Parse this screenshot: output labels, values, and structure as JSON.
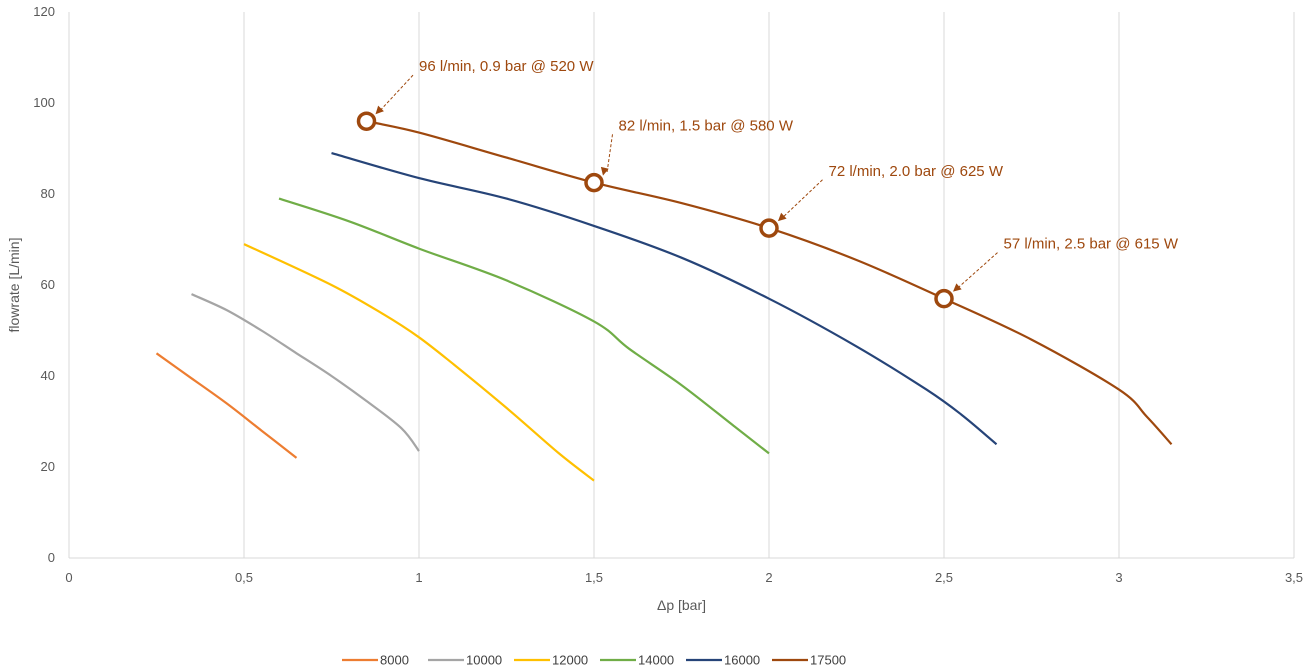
{
  "chart_data": {
    "type": "line",
    "title": "",
    "xlabel": "Δp [bar]",
    "ylabel": "flowrate [L/min]",
    "xlim": [
      0,
      3.5
    ],
    "ylim": [
      0,
      120
    ],
    "xticks": [
      0,
      0.5,
      1,
      1.5,
      2,
      2.5,
      3,
      3.5
    ],
    "xtick_labels": [
      "0",
      "0,5",
      "1",
      "1,5",
      "2",
      "2,5",
      "3",
      "3,5"
    ],
    "yticks": [
      0,
      20,
      40,
      60,
      80,
      100,
      120
    ],
    "ytick_labels": [
      "0",
      "20",
      "40",
      "60",
      "80",
      "100",
      "120"
    ],
    "grid": "vertical",
    "legend_position": "bottom",
    "series": [
      {
        "name": "8000",
        "color": "#ED7D31",
        "x": [
          0.25,
          0.35,
          0.45,
          0.55,
          0.65
        ],
        "y": [
          45,
          39.5,
          34,
          28,
          22
        ]
      },
      {
        "name": "10000",
        "color": "#A5A5A5",
        "x": [
          0.35,
          0.45,
          0.55,
          0.65,
          0.75,
          0.85,
          0.95,
          1.0
        ],
        "y": [
          58,
          54.5,
          50,
          45,
          40,
          34.5,
          28.5,
          23.5
        ]
      },
      {
        "name": "12000",
        "color": "#FFC000",
        "x": [
          0.5,
          0.75,
          0.9,
          1.0,
          1.1,
          1.25,
          1.4,
          1.5
        ],
        "y": [
          69,
          60,
          53.5,
          48.5,
          42.5,
          33,
          23,
          17
        ]
      },
      {
        "name": "14000",
        "color": "#70AD47",
        "x": [
          0.6,
          0.8,
          1.0,
          1.25,
          1.5,
          1.6,
          1.75,
          1.9,
          2.0
        ],
        "y": [
          79,
          74,
          68,
          61,
          52,
          46,
          38,
          29,
          23
        ]
      },
      {
        "name": "16000",
        "color": "#264478",
        "x": [
          0.75,
          1.0,
          1.25,
          1.5,
          1.75,
          2.0,
          2.25,
          2.45,
          2.55,
          2.65
        ],
        "y": [
          89,
          83.5,
          79,
          73,
          66,
          57,
          46.5,
          37,
          31.5,
          25
        ]
      },
      {
        "name": "17500",
        "color": "#9E480E",
        "x": [
          0.85,
          1.0,
          1.25,
          1.5,
          1.75,
          2.0,
          2.25,
          2.5,
          2.75,
          3.0,
          3.08,
          3.15
        ],
        "y": [
          96,
          93.5,
          88,
          82.5,
          78,
          72.5,
          65.5,
          57,
          48,
          37,
          31,
          25
        ]
      }
    ],
    "markers": [
      {
        "x": 0.85,
        "y": 96,
        "label": "96 l/min, 0.9 bar @ 520 W",
        "label_x": 1.0,
        "label_y": 107
      },
      {
        "x": 1.5,
        "y": 82.5,
        "label": "82 l/min, 1.5 bar @ 580 W",
        "label_x": 1.57,
        "label_y": 94
      },
      {
        "x": 2.0,
        "y": 72.5,
        "label": "72 l/min, 2.0 bar @ 625 W",
        "label_x": 2.17,
        "label_y": 84
      },
      {
        "x": 2.5,
        "y": 57,
        "label": "57 l/min, 2.5 bar @ 615 W",
        "label_x": 2.67,
        "label_y": 68
      }
    ],
    "annotation_color": "#9E480E"
  }
}
